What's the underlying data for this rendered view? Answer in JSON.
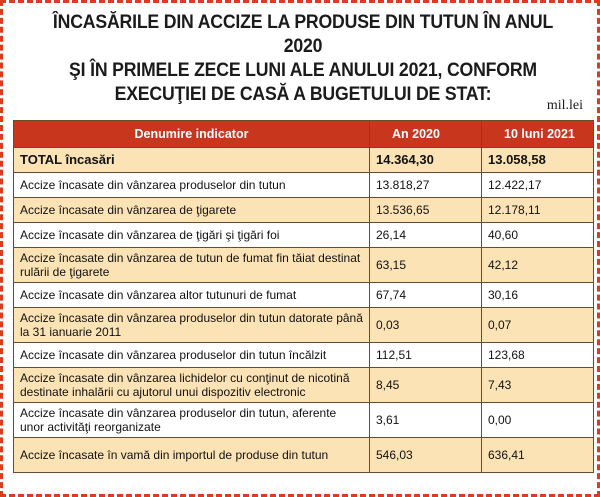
{
  "title": {
    "line1": "ÎNCASĂRILE DIN ACCIZE LA PRODUSE DIN TUTUN ÎN ANUL 2020",
    "line2": "ŞI ÎN PRIMELE ZECE LUNI ALE ANULUI 2021, CONFORM",
    "line3": "EXECUŢIEI DE CASĂ A BUGETULUI DE STAT:"
  },
  "unit": "mil.lei",
  "table": {
    "headers": [
      "Denumire indicator",
      "An 2020",
      "10 luni 2021"
    ],
    "total": {
      "label": "TOTAL încasări",
      "v2020": "14.364,30",
      "v2021": "13.058,58"
    },
    "rows": [
      {
        "label": "Accize încasate din vânzarea produselor din tutun",
        "v2020": "13.818,27",
        "v2021": "12.422,17"
      },
      {
        "label": "Accize încasate din vânzarea de ţigarete",
        "v2020": "13.536,65",
        "v2021": "12.178,11"
      },
      {
        "label": "Accize încasate din vânzarea de ţigări şi ţigări foi",
        "v2020": "26,14",
        "v2021": "40,60"
      },
      {
        "label": "Accize încasate din vânzarea de tutun de fumat fin  tăiat destinat rulării de ţigarete",
        "v2020": "63,15",
        "v2021": "42,12"
      },
      {
        "label": "Accize încasate din vânzarea altor tutunuri de fumat",
        "v2020": "67,74",
        "v2021": "30,16"
      },
      {
        "label": "Accize încasate din vânzarea produselor din tutun datorate până la 31 ianuarie 2011",
        "v2020": "0,03",
        "v2021": "0,07"
      },
      {
        "label": "Accize încasate din vânzarea produselor din tutun încălzit",
        "v2020": "112,51",
        "v2021": "123,68"
      },
      {
        "label": "Accize încasate din vânzarea lichidelor cu conţinut de nicotină destinate inhalării cu ajutorul unui dispozitiv electronic",
        "v2020": "8,45",
        "v2021": "7,43"
      },
      {
        "label": "Accize încasate din vânzarea produselor din tutun, aferente unor activităţi reorganizate",
        "v2020": "3,61",
        "v2021": "0,00"
      },
      {
        "label": " Accize încasate în vamă din importul de produse din tutun",
        "v2020": "546,03",
        "v2021": "636,41"
      }
    ]
  },
  "colors": {
    "border": "#e03a1e",
    "header_bg": "#c8361e",
    "stripe": "#fbe3b5"
  }
}
